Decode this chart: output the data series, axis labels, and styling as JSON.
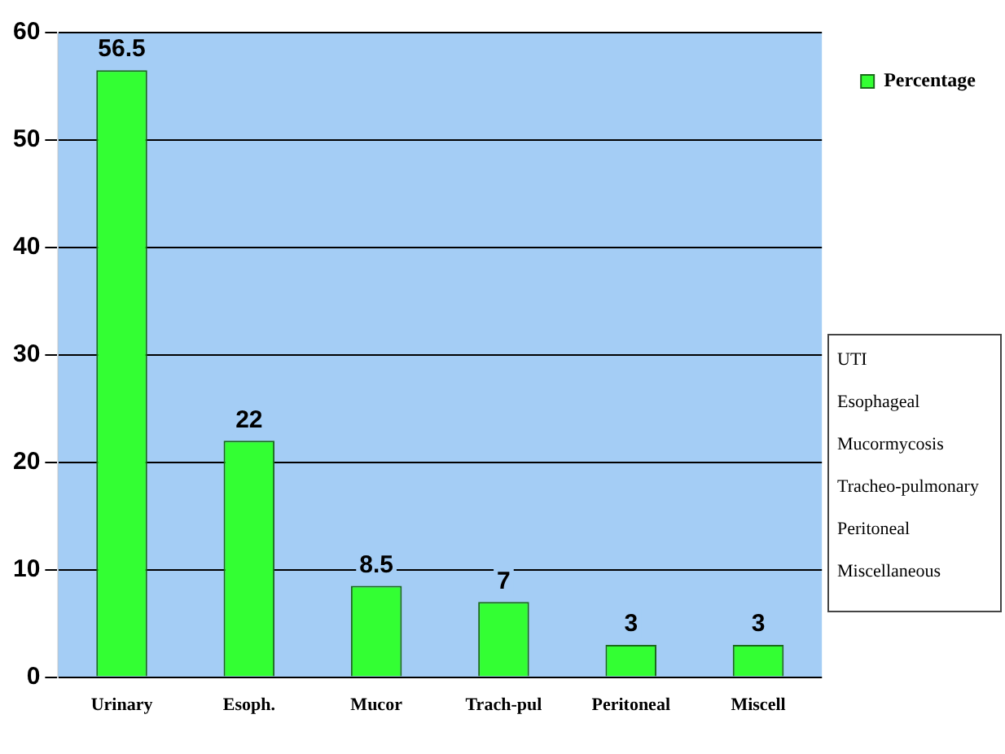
{
  "chart_data": {
    "type": "bar",
    "categories": [
      "Urinary",
      "Esoph.",
      "Mucor",
      "Trach-pul",
      "Peritoneal",
      "Miscell"
    ],
    "series": [
      {
        "name": "Percentage",
        "color": "#33ff33",
        "values": [
          56.5,
          22,
          8.5,
          7,
          3,
          3
        ]
      }
    ],
    "ylim": [
      0,
      60
    ],
    "yticks": [
      0,
      10,
      20,
      30,
      40,
      50,
      60
    ],
    "grid": "y",
    "legend": "right",
    "data_labels": true,
    "annotations": [
      "UTI",
      "Esophageal",
      "Mucormycosis",
      "Tracheo-pulmonary",
      "Peritoneal",
      "Miscellaneous"
    ]
  }
}
